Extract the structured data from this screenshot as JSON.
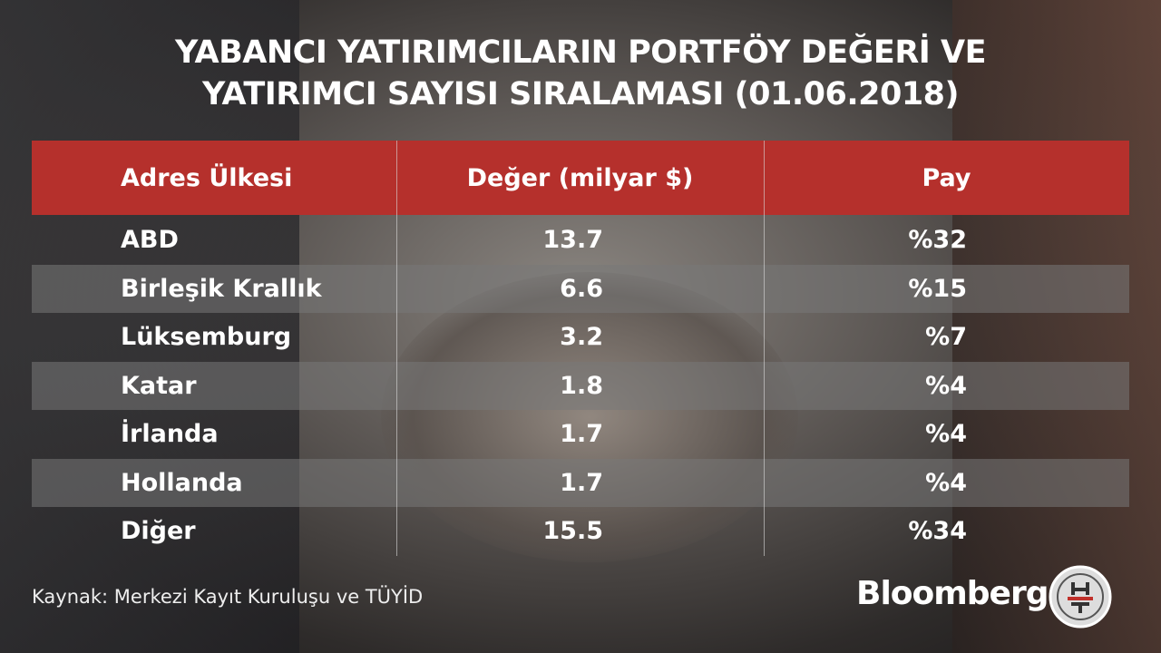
{
  "title": {
    "lines": [
      "YABANCI YATIRIMCILARIN PORTFÖY DEĞERİ VE",
      "YATIRIMCI SAYISI SIRALAMASI (01.06.2018)"
    ]
  },
  "table": {
    "header": [
      "Adres Ülkesi",
      "Değer (milyar $)",
      "Pay"
    ],
    "rows": [
      [
        "ABD",
        "13.7",
        "%32"
      ],
      [
        "Birleşik Krallık",
        "6.6",
        "%15"
      ],
      [
        "Lüksemburg",
        "3.2",
        "%7"
      ],
      [
        "Katar",
        "1.8",
        "%4"
      ],
      [
        "İrlanda",
        "1.7",
        "%4"
      ],
      [
        "Hollanda",
        "1.7",
        "%4"
      ],
      [
        "Diğer",
        "15.5",
        "%34"
      ]
    ]
  },
  "footer": {
    "source": "Kaynak: Merkezi Kayıt Kuruluşu ve TÜYİD",
    "brand": "Bloomberg"
  }
}
